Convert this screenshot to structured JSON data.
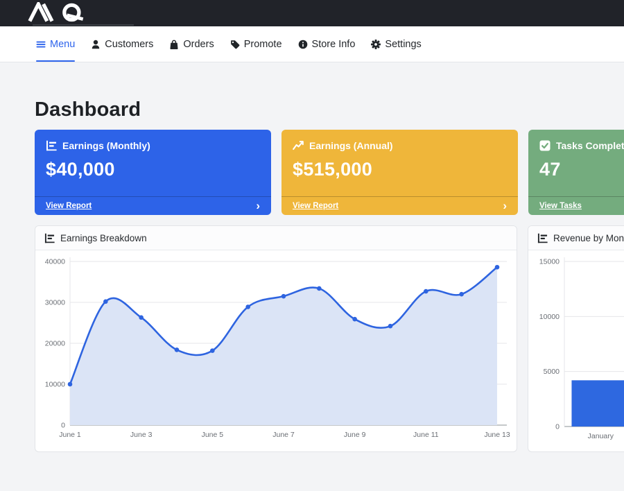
{
  "topbar": {
    "brand": "AQ"
  },
  "nav": {
    "items": [
      {
        "label": "Menu",
        "icon": "hamburger-icon",
        "active": true
      },
      {
        "label": "Customers",
        "icon": "person-icon",
        "active": false
      },
      {
        "label": "Orders",
        "icon": "shopping-bag-icon",
        "active": false
      },
      {
        "label": "Promote",
        "icon": "tag-icon",
        "active": false
      },
      {
        "label": "Store Info",
        "icon": "info-circle-icon",
        "active": false
      },
      {
        "label": "Settings",
        "icon": "gear-icon",
        "active": false
      }
    ]
  },
  "page": {
    "title": "Dashboard"
  },
  "stat_cards": [
    {
      "title": "Earnings (Monthly)",
      "value": "$40,000",
      "link": "View Report",
      "chevron": "›",
      "color": "#2d63e8",
      "icon": "bar-chart-icon"
    },
    {
      "title": "Earnings (Annual)",
      "value": "$515,000",
      "link": "View Report",
      "chevron": "›",
      "color": "#efb63a",
      "icon": "line-chart-icon"
    },
    {
      "title": "Tasks Completed",
      "value": "47",
      "link": "View Tasks",
      "chevron": "›",
      "color": "#74ac7e",
      "icon": "check-square-icon"
    }
  ],
  "chart_data": [
    {
      "type": "line",
      "title": "Earnings Breakdown",
      "x": [
        "June 1",
        "June 2",
        "June 3",
        "June 4",
        "June 5",
        "June 6",
        "June 7",
        "June 8",
        "June 9",
        "June 10",
        "June 11",
        "June 12",
        "June 13"
      ],
      "values": [
        10000,
        30200,
        26300,
        18400,
        18200,
        28900,
        31500,
        33400,
        25900,
        24200,
        32700,
        32000,
        38600
      ],
      "ylim": [
        0,
        40000
      ],
      "yticks": [
        0,
        10000,
        20000,
        30000,
        40000
      ],
      "xtick_every": 2,
      "xlabel": "",
      "ylabel": "",
      "grid": true,
      "legend": false,
      "line_color": "#2e64e0",
      "fill_color": "#dbe4f6"
    },
    {
      "type": "bar",
      "title": "Revenue by Month",
      "categories": [
        "January"
      ],
      "values": [
        4200
      ],
      "ylim": [
        0,
        15000
      ],
      "yticks": [
        0,
        5000,
        10000,
        15000
      ],
      "bands": 6,
      "xlabel": "",
      "ylabel": "",
      "grid": true,
      "legend": false,
      "bar_color": "#2e68e0"
    }
  ]
}
